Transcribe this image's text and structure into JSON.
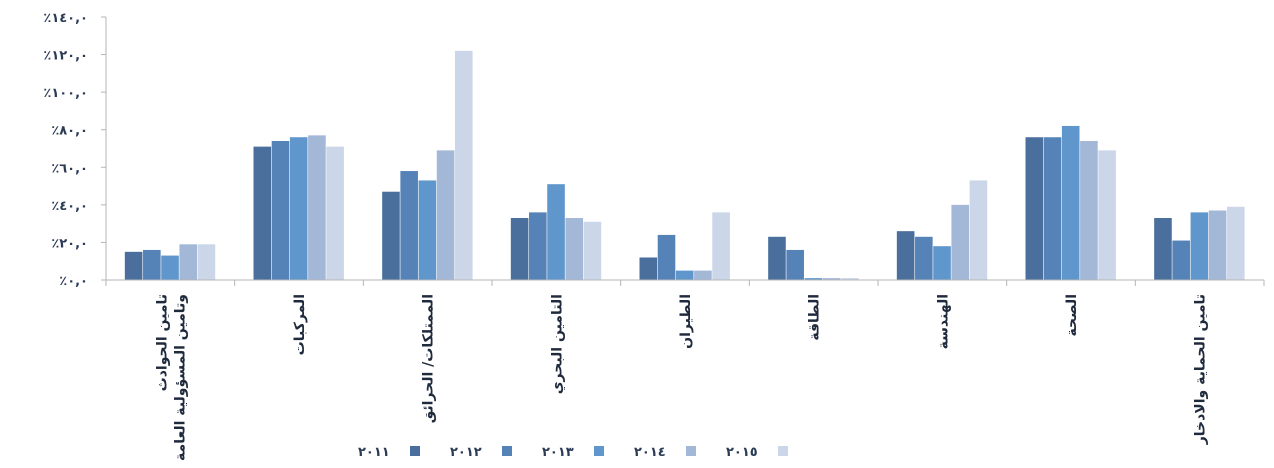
{
  "chart_data": {
    "type": "bar",
    "title": "",
    "xlabel": "",
    "ylabel": "",
    "ylim": [
      0,
      140
    ],
    "y_ticks": [
      0,
      20,
      40,
      60,
      80,
      100,
      120,
      140
    ],
    "y_tick_labels": [
      "٪٠,٠",
      "٪٢٠,٠",
      "٪٤٠,٠",
      "٪٦٠,٠",
      "٪٨٠,٠",
      "٪١٠٠,٠",
      "٪١٢٠,٠",
      "٪١٤٠,٠"
    ],
    "grid": false,
    "legend_position": "bottom",
    "categories": [
      [
        "تامين الحوادث",
        "وتامين المسؤولية العامة"
      ],
      [
        "المركبات"
      ],
      [
        "الممتلكات/ الحرائق"
      ],
      [
        "التامين البحري"
      ],
      [
        "الطيران"
      ],
      [
        "الطاقة"
      ],
      [
        "الهندسة"
      ],
      [
        "الصحة"
      ],
      [
        "تامين الحماية والادخار"
      ]
    ],
    "series": [
      {
        "name": "٢٠١١",
        "color": "#4a6f9c",
        "values": [
          15,
          71,
          47,
          33,
          12,
          23,
          26,
          76,
          33
        ]
      },
      {
        "name": "٢٠١٢",
        "color": "#5583b8",
        "values": [
          16,
          74,
          58,
          36,
          24,
          16,
          23,
          76,
          21
        ]
      },
      {
        "name": "٢٠١٣",
        "color": "#5f96cb",
        "values": [
          13,
          76,
          53,
          51,
          5,
          1,
          18,
          82,
          36
        ]
      },
      {
        "name": "٢٠١٤",
        "color": "#a3b7d7",
        "values": [
          19,
          77,
          69,
          33,
          5,
          1,
          40,
          74,
          37
        ]
      },
      {
        "name": "٢٠١٥",
        "color": "#cbd6e8",
        "values": [
          19,
          71,
          122,
          31,
          36,
          1,
          53,
          69,
          39
        ]
      }
    ]
  }
}
